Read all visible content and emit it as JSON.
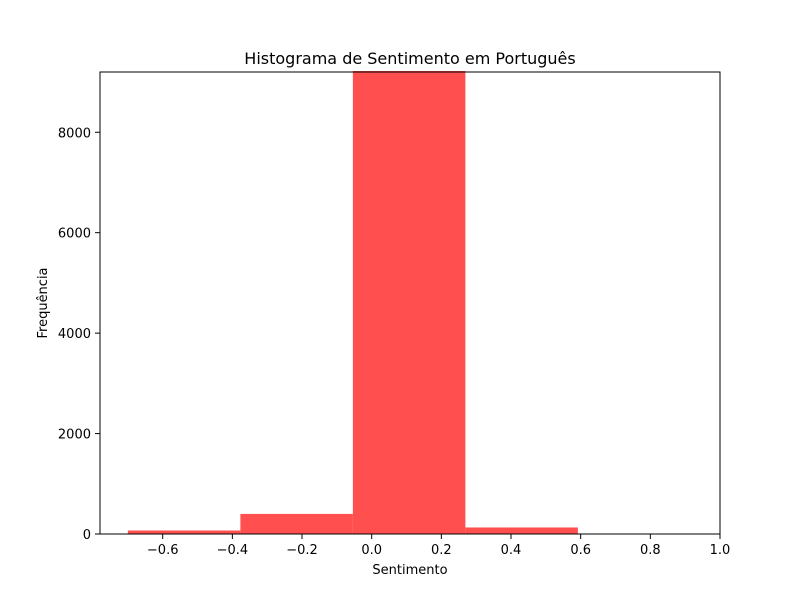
{
  "chart_data": {
    "type": "bar",
    "title": "Histograma de Sentimento em Português",
    "xlabel": "Sentimento",
    "ylabel": "Frequência",
    "xlim": [
      -0.78,
      1.0
    ],
    "ylim": [
      0,
      9200
    ],
    "xticks": [
      -0.6,
      -0.4,
      -0.2,
      0.0,
      0.2,
      0.4,
      0.6,
      0.8,
      1.0
    ],
    "xtick_labels": [
      "−0.6",
      "−0.4",
      "−0.2",
      "0.0",
      "0.2",
      "0.4",
      "0.6",
      "0.8",
      "1.0"
    ],
    "yticks": [
      0,
      2000,
      4000,
      6000,
      8000
    ],
    "ytick_labels": [
      "0",
      "2000",
      "4000",
      "6000",
      "8000"
    ],
    "grid": false,
    "bar_color": "#ff4f4f",
    "bins": [
      {
        "x0": -0.7,
        "x1": -0.377,
        "count": 70
      },
      {
        "x0": -0.377,
        "x1": -0.054,
        "count": 400
      },
      {
        "x0": -0.054,
        "x1": 0.269,
        "count": 9220
      },
      {
        "x0": 0.269,
        "x1": 0.592,
        "count": 130
      }
    ]
  }
}
